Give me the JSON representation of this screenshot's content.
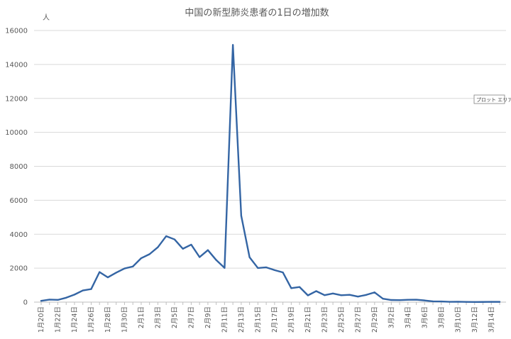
{
  "chart_data": {
    "type": "line",
    "title": "中国の新型肺炎患者の1日の増加数",
    "ylabel": "人",
    "xlabel": "",
    "ylim": [
      0,
      16000
    ],
    "yticks": [
      0,
      2000,
      4000,
      6000,
      8000,
      10000,
      12000,
      14000,
      16000
    ],
    "grid": true,
    "legend": "none",
    "x": [
      "1月20日",
      "1月21日",
      "1月22日",
      "1月23日",
      "1月24日",
      "1月25日",
      "1月26日",
      "1月27日",
      "1月28日",
      "1月29日",
      "1月30日",
      "1月31日",
      "2月1日",
      "2月2日",
      "2月3日",
      "2月4日",
      "2月5日",
      "2月6日",
      "2月7日",
      "2月8日",
      "2月9日",
      "2月10日",
      "2月11日",
      "2月12日",
      "2月13日",
      "2月14日",
      "2月15日",
      "2月16日",
      "2月17日",
      "2月18日",
      "2月19日",
      "2月20日",
      "2月21日",
      "2月22日",
      "2月23日",
      "2月24日",
      "2月25日",
      "2月26日",
      "2月27日",
      "2月28日",
      "2月29日",
      "3月1日",
      "3月2日",
      "3月3日",
      "3月4日",
      "3月5日",
      "3月6日",
      "3月7日",
      "3月8日",
      "3月9日",
      "3月10日",
      "3月11日",
      "3月12日",
      "3月13日",
      "3月14日",
      "3月15日"
    ],
    "xtick_labels": [
      "1月20日",
      "1月22日",
      "1月24日",
      "1月26日",
      "1月28日",
      "1月30日",
      "2月1日",
      "2月3日",
      "2月5日",
      "2月7日",
      "2月9日",
      "2月11日",
      "2月13日",
      "2月15日",
      "2月17日",
      "2月19日",
      "2月21日",
      "2月23日",
      "2月25日",
      "2月27日",
      "2月29日",
      "3月2日",
      "3月4日",
      "3月6日",
      "3月8日",
      "3月10日",
      "3月12日",
      "3月14日"
    ],
    "series": [
      {
        "color": "#3465a4",
        "values": [
          77,
          149,
          131,
          259,
          444,
          688,
          769,
          1771,
          1459,
          1737,
          1981,
          2099,
          2589,
          2825,
          3235,
          3887,
          3694,
          3143,
          3385,
          2652,
          3062,
          2478,
          2015,
          15152,
          5090,
          2641,
          2008,
          2048,
          1886,
          1749,
          820,
          889,
          397,
          648,
          409,
          508,
          406,
          433,
          327,
          427,
          573,
          202,
          125,
          119,
          139,
          143,
          99,
          44,
          40,
          19,
          24,
          15,
          8,
          11,
          20,
          16
        ]
      }
    ]
  },
  "plot_area_tag": "プロット エリア"
}
